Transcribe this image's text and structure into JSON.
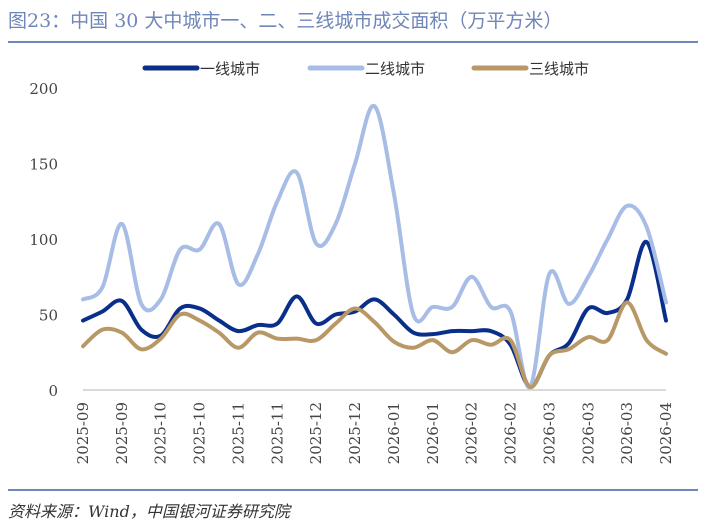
{
  "title": "图23：中国 30 大中城市一、二、三线城市成交面积（万平方米）",
  "source": "资料来源：Wind，中国银河证券研究院",
  "chart_data": {
    "type": "line",
    "title": "图23：中国 30 大中城市一、二、三线城市成交面积（万平方米）",
    "ylim": [
      0,
      200
    ],
    "yticks": [
      "0",
      "50",
      "100",
      "150",
      "200"
    ],
    "xtick_labels": [
      "2025-09",
      "2025-09",
      "2025-10",
      "2025-10",
      "2025-11",
      "2025-11",
      "2025-12",
      "2025-12",
      "2026-01",
      "2026-01",
      "2026-02",
      "2026-02",
      "2026-03",
      "2026-03",
      "2026-03",
      "2026-04"
    ],
    "legend_placement": "top",
    "series": [
      {
        "name": "一线城市",
        "color": "#0a2f8a",
        "values": [
          46,
          52,
          59,
          40,
          36,
          54,
          54,
          46,
          39,
          43,
          44,
          62,
          44,
          50,
          52,
          60,
          50,
          38,
          37,
          39,
          39,
          39,
          30,
          2,
          23,
          31,
          54,
          51,
          60,
          98,
          46
        ]
      },
      {
        "name": "二线城市",
        "color": "#a7bde6",
        "values": [
          60,
          68,
          110,
          57,
          60,
          93,
          93,
          110,
          70,
          90,
          125,
          144,
          97,
          110,
          150,
          188,
          130,
          50,
          55,
          55,
          75,
          55,
          52,
          2,
          77,
          57,
          75,
          100,
          122,
          108,
          58
        ]
      },
      {
        "name": "三线城市",
        "color": "#b99868",
        "values": [
          29,
          40,
          38,
          27,
          34,
          50,
          46,
          38,
          28,
          38,
          34,
          34,
          33,
          44,
          54,
          45,
          32,
          28,
          33,
          25,
          33,
          30,
          33,
          2,
          23,
          27,
          35,
          33,
          58,
          33,
          24
        ]
      }
    ]
  }
}
